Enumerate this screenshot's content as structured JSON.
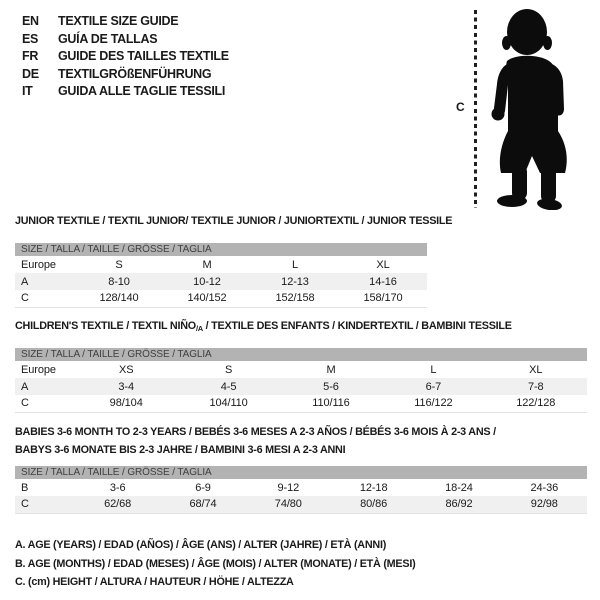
{
  "colors": {
    "bar_bg": "#b3b3b3",
    "bar_text": "#3f3f3f",
    "row_alt": "#f0f0f0",
    "text": "#1a1a1a",
    "silhouette": "#0c0c0c"
  },
  "language_header": {
    "items": [
      {
        "code": "EN",
        "title": "TEXTILE SIZE GUIDE"
      },
      {
        "code": "ES",
        "title": "GUÍA DE TALLAS"
      },
      {
        "code": "FR",
        "title": "GUIDE DES TAILLES TEXTILE"
      },
      {
        "code": "DE",
        "title": "TEXTILGRÖßENFÜHRUNG"
      },
      {
        "code": "IT",
        "title": "GUIDA ALLE TAGLIE TESSILI"
      }
    ]
  },
  "figure": {
    "height_label": "C"
  },
  "sections": [
    {
      "id": "junior",
      "title_lines": [
        [
          {
            "t": "JUNIOR TEXTILE / TEXTIL JUNIOR/ TEXTILE JUNIOR / JUNIORTEXTIL / JUNIOR TESSILE"
          }
        ]
      ],
      "size_header": "SIZE / TALLA / TAILLE / GRÖSSE / TAGLIA",
      "rows": [
        [
          "Europe",
          "S",
          "M",
          "L",
          "XL"
        ],
        [
          "A",
          "8-10",
          "10-12",
          "12-13",
          "14-16"
        ],
        [
          "C",
          "128/140",
          "140/152",
          "152/158",
          "158/170"
        ]
      ]
    },
    {
      "id": "children",
      "title_lines": [
        [
          {
            "t": "CHILDREN'S TEXTILE / TEXTIL NIÑO"
          },
          {
            "t": "/A",
            "sub": true
          },
          {
            "t": " / TEXTILE DES ENFANTS / KINDERTEXTIL / BAMBINI TESSILE"
          }
        ]
      ],
      "size_header": "SIZE / TALLA / TAILLE / GRÖSSE / TAGLIA",
      "rows": [
        [
          "Europe",
          "XS",
          "S",
          "M",
          "L",
          "XL"
        ],
        [
          "A",
          "3-4",
          "4-5",
          "5-6",
          "6-7",
          "7-8"
        ],
        [
          "C",
          "98/104",
          "104/110",
          "110/116",
          "116/122",
          "122/128"
        ]
      ]
    },
    {
      "id": "babies",
      "title_lines": [
        [
          {
            "t": "BABIES 3-6 MONTH TO 2-3 YEARS / BEBÉS 3-6 MESES A 2-3 AÑOS / BÉBÉS 3-6 MOIS À 2-3 ANS /"
          }
        ],
        [
          {
            "t": "BABYS 3-6 MONATE BIS 2-3 JAHRE / BAMBINI 3-6 MESI A 2-3 ANNI"
          }
        ]
      ],
      "size_header": "SIZE / TALLA / TAILLE / GRÖSSE / TAGLIA",
      "rows": [
        [
          "B",
          "3-6",
          "6-9",
          "9-12",
          "12-18",
          "18-24",
          "24-36"
        ],
        [
          "C",
          "62/68",
          "68/74",
          "74/80",
          "80/86",
          "86/92",
          "92/98"
        ]
      ]
    }
  ],
  "notes": [
    "A. AGE (YEARS) / EDAD (AÑOS) / ÂGE (ANS) / ALTER (JAHRE) / ETÀ (ANNI)",
    "B. AGE (MONTHS) / EDAD (MESES) / ÂGE (MOIS) / ALTER (MONATE) / ETÀ (MESI)",
    "C. (cm) HEIGHT / ALTURA / HAUTEUR / HÖHE / ALTEZZA"
  ]
}
